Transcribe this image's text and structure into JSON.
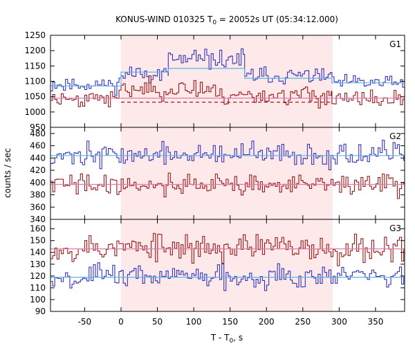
{
  "chart_data": {
    "type": "line",
    "title": "KONUS-WIND 010325 T",
    "title_sub": "0",
    "title_rest": " = 20052s UT (05:34:12.000)",
    "xlabel": "T - T",
    "xlabel_sub": "0",
    "xlabel_rest": ", s",
    "ylabel": "counts / sec",
    "xlim": [
      -97,
      390
    ],
    "xticks": [
      -50,
      0,
      50,
      100,
      150,
      200,
      250,
      300,
      350
    ],
    "shaded_interval": [
      0,
      291
    ],
    "grid": false,
    "panels": [
      {
        "label": "G1",
        "ylim": [
          950,
          1250
        ],
        "yticks": [
          950,
          1000,
          1050,
          1100,
          1150,
          1200,
          1250
        ],
        "tick_labels_shown": [
          950,
          1000,
          1050,
          1100,
          1150,
          1200,
          1250
        ],
        "series": [
          {
            "color": "#3333bb",
            "role": "counts",
            "seed": 11,
            "segments": [
              [
                -97,
                0,
                1090,
                12
              ],
              [
                0,
                65,
                1125,
                14
              ],
              [
                65,
                170,
                1170,
                16
              ],
              [
                170,
                290,
                1118,
                13
              ],
              [
                290,
                390,
                1095,
                12
              ]
            ]
          },
          {
            "color": "#9a1a1a",
            "role": "counts",
            "seed": 23,
            "segments": [
              [
                -97,
                0,
                1045,
                14
              ],
              [
                0,
                130,
                1075,
                16
              ],
              [
                130,
                290,
                1055,
                16
              ],
              [
                290,
                390,
                1040,
                14
              ]
            ]
          },
          {
            "color": "#5ab4e6",
            "role": "background",
            "points": [
              [
                -97,
                1085
              ],
              [
                0,
                1085
              ],
              [
                0,
                1130
              ],
              [
                65,
                1130
              ],
              [
                65,
                1142
              ],
              [
                170,
                1142
              ],
              [
                170,
                1110
              ],
              [
                290,
                1110
              ],
              [
                290,
                1095
              ],
              [
                390,
                1095
              ]
            ]
          },
          {
            "color": "#e07ab0",
            "role": "background",
            "points": [
              [
                -97,
                1045
              ],
              [
                390,
                1045
              ]
            ]
          },
          {
            "color": "#9a1a1a",
            "role": "level",
            "dashed": true,
            "points": [
              [
                0,
                1032
              ],
              [
                290,
                1032
              ]
            ]
          }
        ]
      },
      {
        "label": "G2",
        "ylim": [
          340,
          490
        ],
        "yticks": [
          340,
          360,
          380,
          400,
          420,
          440,
          460,
          480
        ],
        "tick_labels_shown": [
          340,
          360,
          380,
          400,
          420,
          440,
          460,
          480
        ],
        "series": [
          {
            "color": "#3333bb",
            "role": "counts",
            "seed": 37,
            "segments": [
              [
                -97,
                390,
                445,
                9
              ]
            ]
          },
          {
            "color": "#9a1a1a",
            "role": "counts",
            "seed": 41,
            "segments": [
              [
                -97,
                390,
                397,
                9
              ]
            ]
          },
          {
            "color": "#5ab4e6",
            "role": "background",
            "points": [
              [
                -97,
                444
              ],
              [
                390,
                444
              ]
            ]
          },
          {
            "color": "#e07ab0",
            "role": "background",
            "points": [
              [
                -97,
                397
              ],
              [
                390,
                397
              ]
            ]
          }
        ]
      },
      {
        "label": "G3",
        "ylim": [
          90,
          168
        ],
        "yticks": [
          90,
          100,
          110,
          120,
          130,
          140,
          150,
          160
        ],
        "tick_labels_shown": [
          90,
          100,
          110,
          120,
          130,
          140,
          150,
          160
        ],
        "series": [
          {
            "color": "#9a1a1a",
            "role": "counts",
            "seed": 53,
            "segments": [
              [
                -97,
                390,
                144,
                6
              ]
            ]
          },
          {
            "color": "#3333bb",
            "role": "counts",
            "seed": 67,
            "segments": [
              [
                -97,
                390,
                120,
                5
              ]
            ]
          },
          {
            "color": "#5ab4e6",
            "role": "background",
            "points": [
              [
                -97,
                119
              ],
              [
                390,
                119
              ]
            ]
          },
          {
            "color": "#e07ab0",
            "role": "background",
            "points": [
              [
                -97,
                143
              ],
              [
                390,
                143
              ]
            ]
          }
        ]
      }
    ],
    "bin_width_s": 2.944
  }
}
